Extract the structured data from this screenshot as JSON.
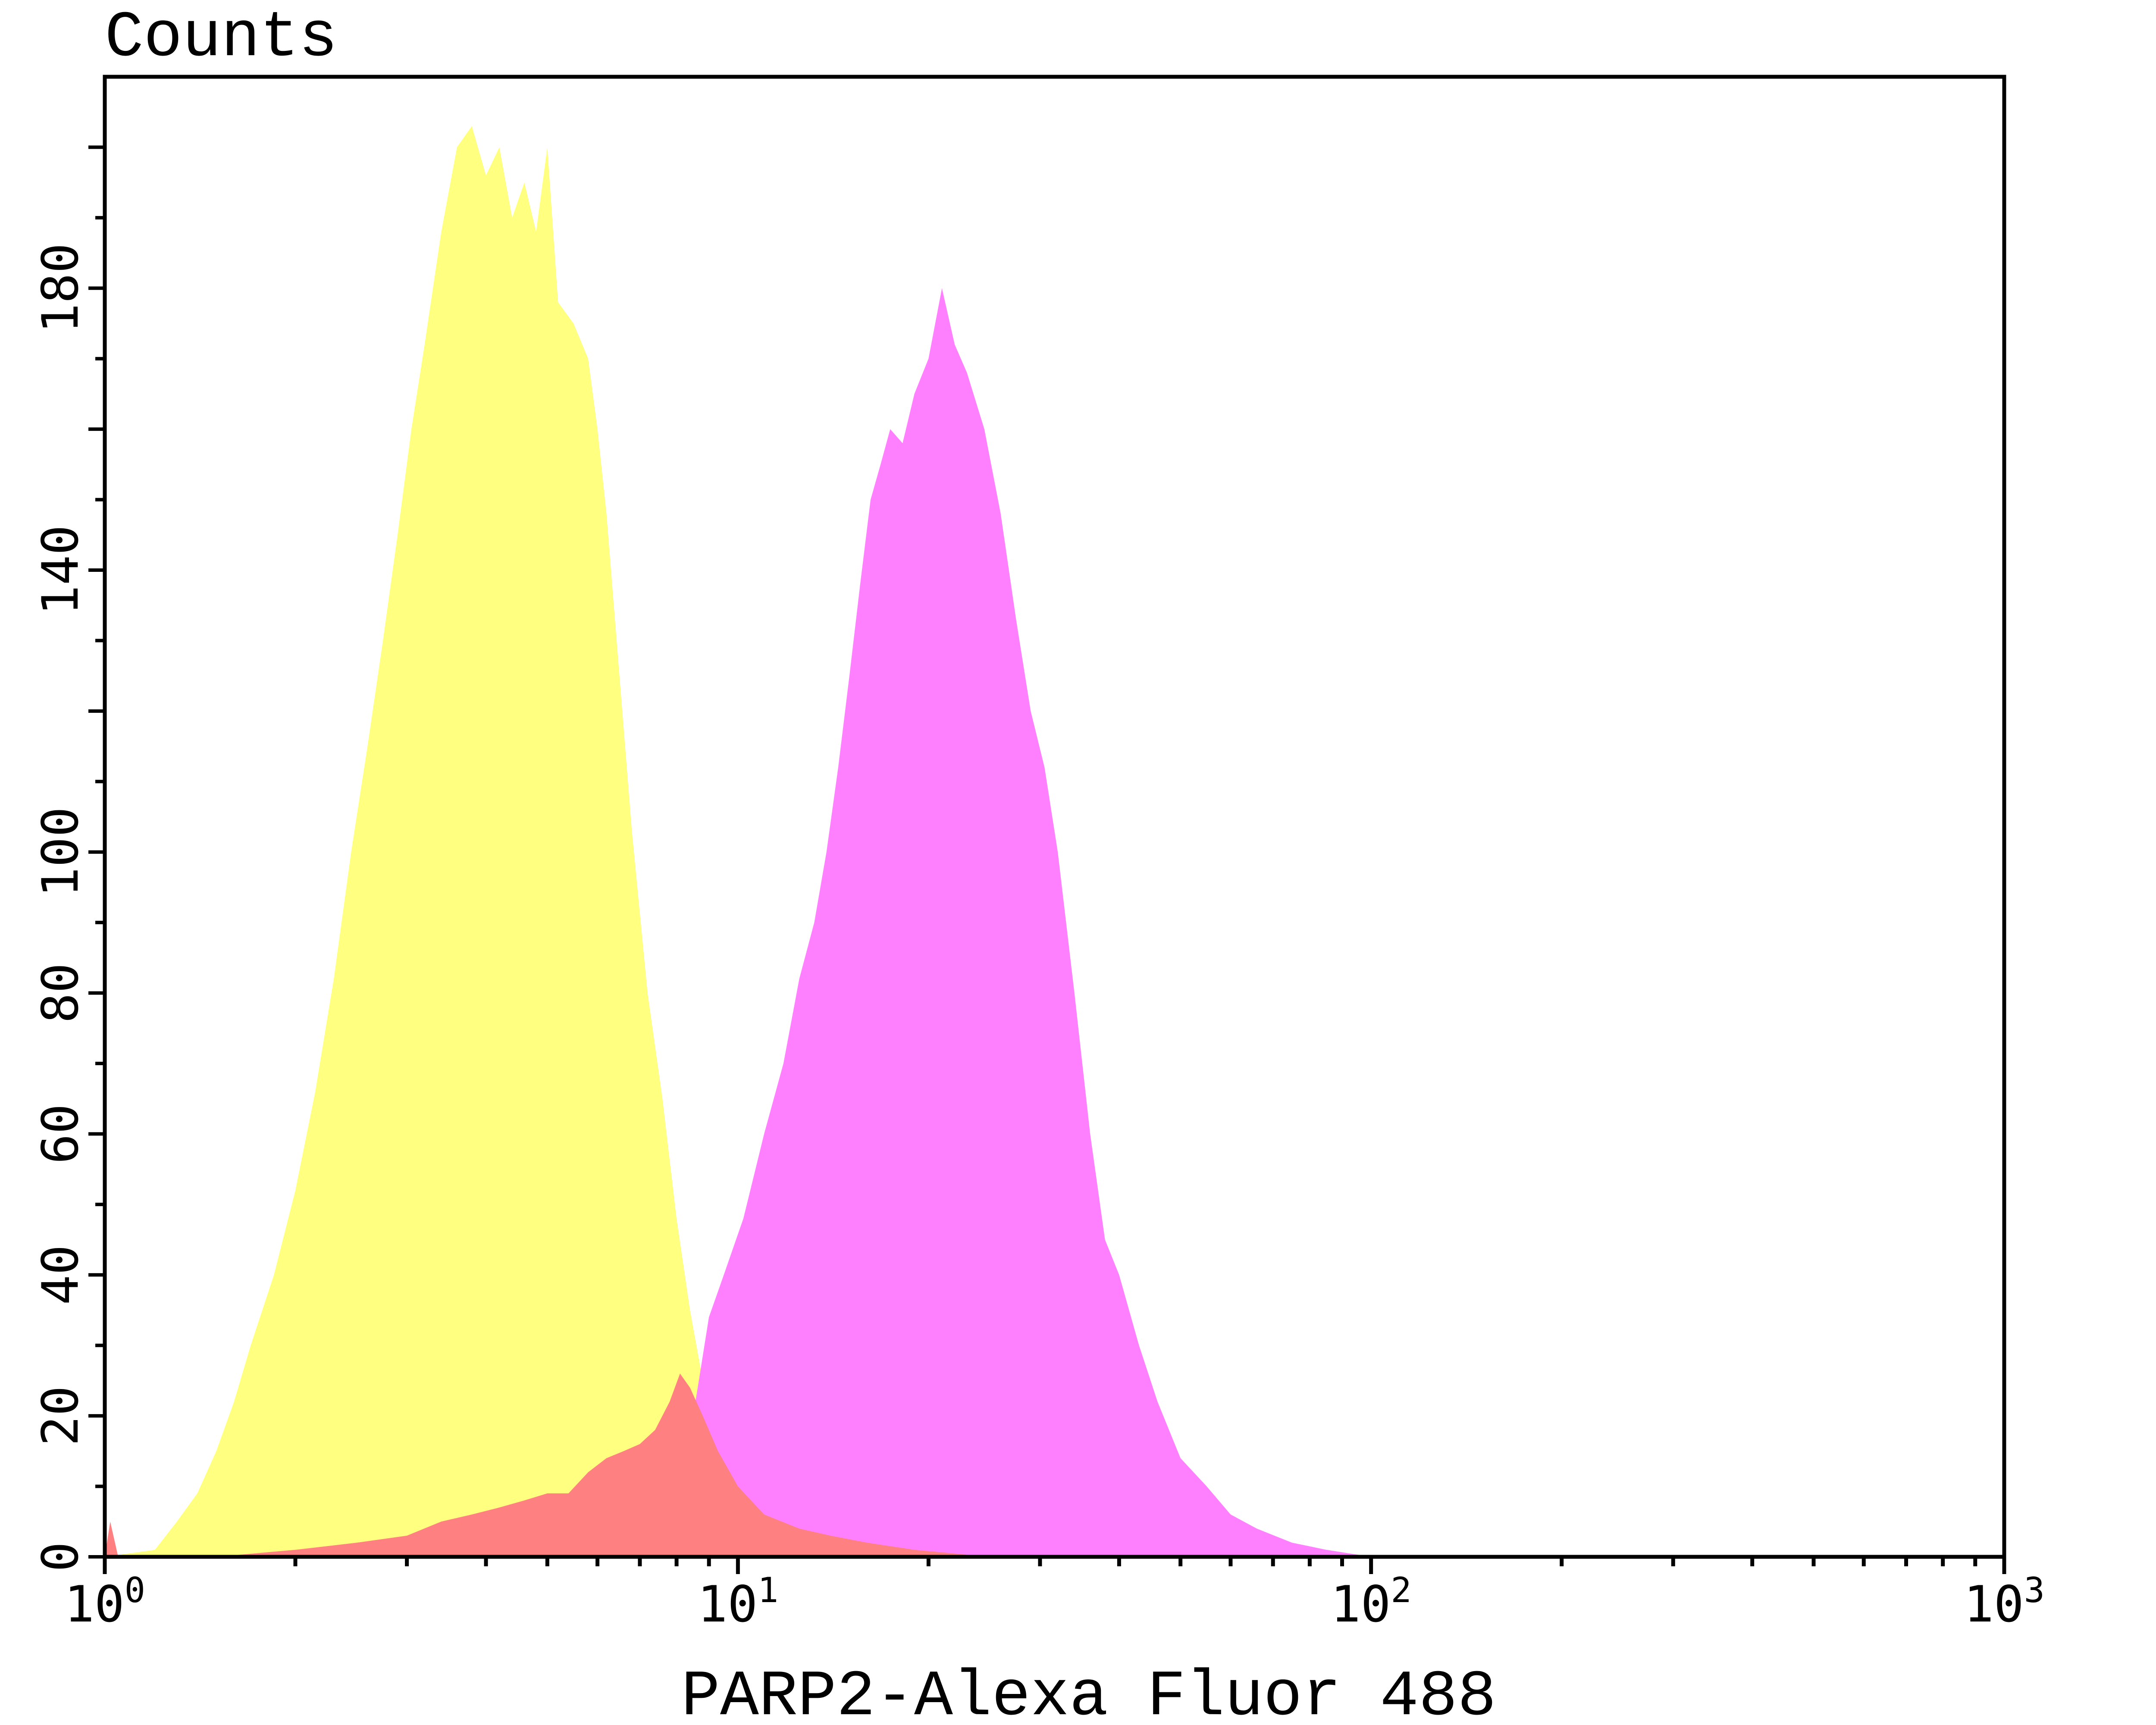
{
  "chart_data": {
    "type": "histogram",
    "ylabel": "Counts",
    "xlabel": "PARP2-Alexa Fluor 488",
    "x_scale": "log",
    "xlim": [
      1,
      1000
    ],
    "ylim": [
      0,
      210
    ],
    "x_ticks": [
      {
        "value": 1,
        "base": "10",
        "exp": "0"
      },
      {
        "value": 10,
        "base": "10",
        "exp": "1"
      },
      {
        "value": 100,
        "base": "10",
        "exp": "2"
      },
      {
        "value": 1000,
        "base": "10",
        "exp": "3"
      }
    ],
    "y_ticks": [
      "0",
      "20",
      "40",
      "60",
      "80",
      "100",
      "140",
      "180"
    ],
    "series": [
      {
        "color": "#ffff80",
        "points": [
          [
            1.0,
            0
          ],
          [
            1.2,
            1
          ],
          [
            1.3,
            5
          ],
          [
            1.4,
            9
          ],
          [
            1.5,
            15
          ],
          [
            1.6,
            22
          ],
          [
            1.7,
            30
          ],
          [
            1.85,
            40
          ],
          [
            2.0,
            52
          ],
          [
            2.15,
            66
          ],
          [
            2.3,
            82
          ],
          [
            2.45,
            100
          ],
          [
            2.6,
            115
          ],
          [
            2.75,
            130
          ],
          [
            2.9,
            145
          ],
          [
            3.05,
            160
          ],
          [
            3.2,
            172
          ],
          [
            3.4,
            188
          ],
          [
            3.6,
            200
          ],
          [
            3.8,
            203
          ],
          [
            4.0,
            196
          ],
          [
            4.2,
            200
          ],
          [
            4.4,
            190
          ],
          [
            4.6,
            195
          ],
          [
            4.8,
            188
          ],
          [
            5.0,
            200
          ],
          [
            5.2,
            178
          ],
          [
            5.5,
            175
          ],
          [
            5.8,
            170
          ],
          [
            6.0,
            160
          ],
          [
            6.2,
            148
          ],
          [
            6.5,
            125
          ],
          [
            6.8,
            103
          ],
          [
            7.2,
            80
          ],
          [
            7.6,
            65
          ],
          [
            8.0,
            48
          ],
          [
            8.4,
            35
          ],
          [
            8.8,
            25
          ],
          [
            9.3,
            16
          ],
          [
            10.0,
            9
          ],
          [
            10.8,
            5
          ],
          [
            11.5,
            3
          ],
          [
            12.5,
            1
          ],
          [
            14.0,
            0
          ]
        ]
      },
      {
        "color": "#ff80ff",
        "points": [
          [
            6.0,
            0
          ],
          [
            7.0,
            3
          ],
          [
            8.0,
            10
          ],
          [
            8.5,
            20
          ],
          [
            9.0,
            34
          ],
          [
            9.5,
            40
          ],
          [
            10.2,
            48
          ],
          [
            11.0,
            60
          ],
          [
            11.8,
            70
          ],
          [
            12.5,
            82
          ],
          [
            13.2,
            90
          ],
          [
            13.8,
            100
          ],
          [
            14.4,
            112
          ],
          [
            15.0,
            125
          ],
          [
            15.6,
            138
          ],
          [
            16.2,
            150
          ],
          [
            16.8,
            155
          ],
          [
            17.4,
            160
          ],
          [
            18.2,
            158
          ],
          [
            19.0,
            165
          ],
          [
            20.0,
            170
          ],
          [
            21.0,
            180
          ],
          [
            22.0,
            172
          ],
          [
            23.0,
            168
          ],
          [
            24.5,
            160
          ],
          [
            26.0,
            148
          ],
          [
            27.5,
            133
          ],
          [
            29.0,
            120
          ],
          [
            30.5,
            112
          ],
          [
            32.0,
            100
          ],
          [
            34.0,
            80
          ],
          [
            36.0,
            60
          ],
          [
            38.0,
            45
          ],
          [
            40.0,
            40
          ],
          [
            43.0,
            30
          ],
          [
            46.0,
            22
          ],
          [
            50.0,
            14
          ],
          [
            55.0,
            10
          ],
          [
            60.0,
            6
          ],
          [
            66.0,
            4
          ],
          [
            75.0,
            2
          ],
          [
            85.0,
            1
          ],
          [
            100.0,
            0
          ]
        ]
      },
      {
        "color": "#ff8080",
        "points": [
          [
            1.0,
            0
          ],
          [
            1.02,
            5
          ],
          [
            1.05,
            0
          ],
          [
            1.5,
            0
          ],
          [
            2.0,
            1
          ],
          [
            2.5,
            2
          ],
          [
            3.0,
            3
          ],
          [
            3.4,
            5
          ],
          [
            3.8,
            6
          ],
          [
            4.2,
            7
          ],
          [
            4.6,
            8
          ],
          [
            5.0,
            9
          ],
          [
            5.4,
            9
          ],
          [
            5.8,
            12
          ],
          [
            6.2,
            14
          ],
          [
            6.6,
            15
          ],
          [
            7.0,
            16
          ],
          [
            7.4,
            18
          ],
          [
            7.8,
            22
          ],
          [
            8.1,
            26
          ],
          [
            8.4,
            24
          ],
          [
            8.8,
            20
          ],
          [
            9.3,
            15
          ],
          [
            10.0,
            10
          ],
          [
            11.0,
            6
          ],
          [
            12.5,
            4
          ],
          [
            14.0,
            3
          ],
          [
            16.0,
            2
          ],
          [
            19.0,
            1
          ],
          [
            25.0,
            0
          ]
        ]
      }
    ],
    "legend": "none",
    "grid": false
  }
}
